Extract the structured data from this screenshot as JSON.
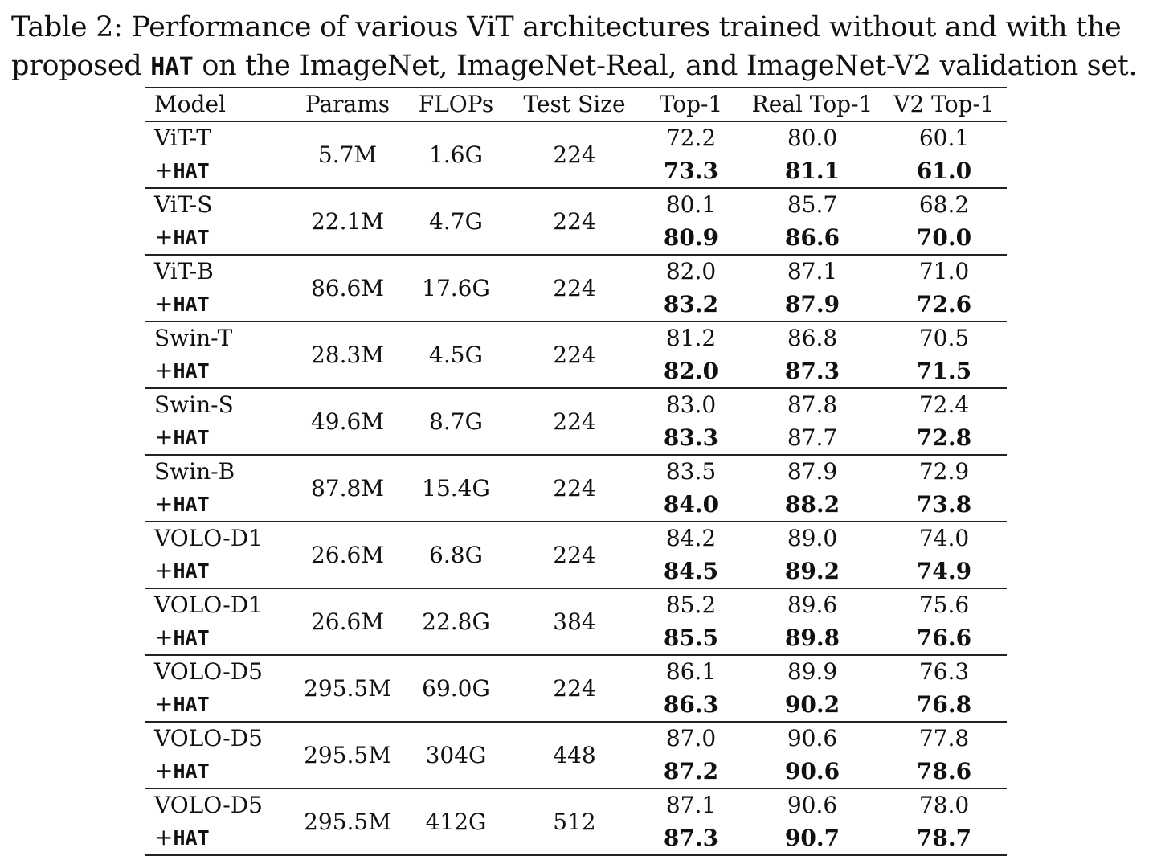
{
  "caption": {
    "prefix": "Table 2: Performance of various ViT architectures trained without and with the proposed ",
    "method": "HAT",
    "suffix": " on the ImageNet, ImageNet-Real, and ImageNet-V2 validation set."
  },
  "table": {
    "headers": [
      "Model",
      "Params",
      "FLOPs",
      "Test Size",
      "Top-1",
      "Real Top-1",
      "V2 Top-1"
    ],
    "hat_prefix": "+",
    "hat_name": "HAT",
    "rows": [
      {
        "model": "ViT-T",
        "params": "5.7M",
        "flops": "1.6G",
        "test_size": "224",
        "base": {
          "top1": "72.2",
          "real": "80.0",
          "v2": "60.1"
        },
        "hat": {
          "top1": "73.3",
          "real": "81.1",
          "v2": "61.0",
          "top1_bold": true,
          "real_bold": true,
          "v2_bold": true
        }
      },
      {
        "model": "ViT-S",
        "params": "22.1M",
        "flops": "4.7G",
        "test_size": "224",
        "base": {
          "top1": "80.1",
          "real": "85.7",
          "v2": "68.2"
        },
        "hat": {
          "top1": "80.9",
          "real": "86.6",
          "v2": "70.0",
          "top1_bold": true,
          "real_bold": true,
          "v2_bold": true
        }
      },
      {
        "model": "ViT-B",
        "params": "86.6M",
        "flops": "17.6G",
        "test_size": "224",
        "base": {
          "top1": "82.0",
          "real": "87.1",
          "v2": "71.0"
        },
        "hat": {
          "top1": "83.2",
          "real": "87.9",
          "v2": "72.6",
          "top1_bold": true,
          "real_bold": true,
          "v2_bold": true
        }
      },
      {
        "model": "Swin-T",
        "params": "28.3M",
        "flops": "4.5G",
        "test_size": "224",
        "base": {
          "top1": "81.2",
          "real": "86.8",
          "v2": "70.5"
        },
        "hat": {
          "top1": "82.0",
          "real": "87.3",
          "v2": "71.5",
          "top1_bold": true,
          "real_bold": true,
          "v2_bold": true
        }
      },
      {
        "model": "Swin-S",
        "params": "49.6M",
        "flops": "8.7G",
        "test_size": "224",
        "base": {
          "top1": "83.0",
          "real": "87.8",
          "v2": "72.4"
        },
        "hat": {
          "top1": "83.3",
          "real": "87.7",
          "v2": "72.8",
          "top1_bold": true,
          "real_bold": false,
          "v2_bold": true
        }
      },
      {
        "model": "Swin-B",
        "params": "87.8M",
        "flops": "15.4G",
        "test_size": "224",
        "base": {
          "top1": "83.5",
          "real": "87.9",
          "v2": "72.9"
        },
        "hat": {
          "top1": "84.0",
          "real": "88.2",
          "v2": "73.8",
          "top1_bold": true,
          "real_bold": true,
          "v2_bold": true
        }
      },
      {
        "model": "VOLO-D1",
        "params": "26.6M",
        "flops": "6.8G",
        "test_size": "224",
        "base": {
          "top1": "84.2",
          "real": "89.0",
          "v2": "74.0"
        },
        "hat": {
          "top1": "84.5",
          "real": "89.2",
          "v2": "74.9",
          "top1_bold": true,
          "real_bold": true,
          "v2_bold": true
        }
      },
      {
        "model": "VOLO-D1",
        "params": "26.6M",
        "flops": "22.8G",
        "test_size": "384",
        "base": {
          "top1": "85.2",
          "real": "89.6",
          "v2": "75.6"
        },
        "hat": {
          "top1": "85.5",
          "real": "89.8",
          "v2": "76.6",
          "top1_bold": true,
          "real_bold": true,
          "v2_bold": true
        }
      },
      {
        "model": "VOLO-D5",
        "params": "295.5M",
        "flops": "69.0G",
        "test_size": "224",
        "base": {
          "top1": "86.1",
          "real": "89.9",
          "v2": "76.3"
        },
        "hat": {
          "top1": "86.3",
          "real": "90.2",
          "v2": "76.8",
          "top1_bold": true,
          "real_bold": true,
          "v2_bold": true
        }
      },
      {
        "model": "VOLO-D5",
        "params": "295.5M",
        "flops": "304G",
        "test_size": "448",
        "base": {
          "top1": "87.0",
          "real": "90.6",
          "v2": "77.8"
        },
        "hat": {
          "top1": "87.2",
          "real": "90.6",
          "v2": "78.6",
          "top1_bold": true,
          "real_bold": true,
          "v2_bold": true
        }
      },
      {
        "model": "VOLO-D5",
        "params": "295.5M",
        "flops": "412G",
        "test_size": "512",
        "base": {
          "top1": "87.1",
          "real": "90.6",
          "v2": "78.0"
        },
        "hat": {
          "top1": "87.3",
          "real": "90.7",
          "v2": "78.7",
          "top1_bold": true,
          "real_bold": true,
          "v2_bold": true
        }
      }
    ]
  }
}
